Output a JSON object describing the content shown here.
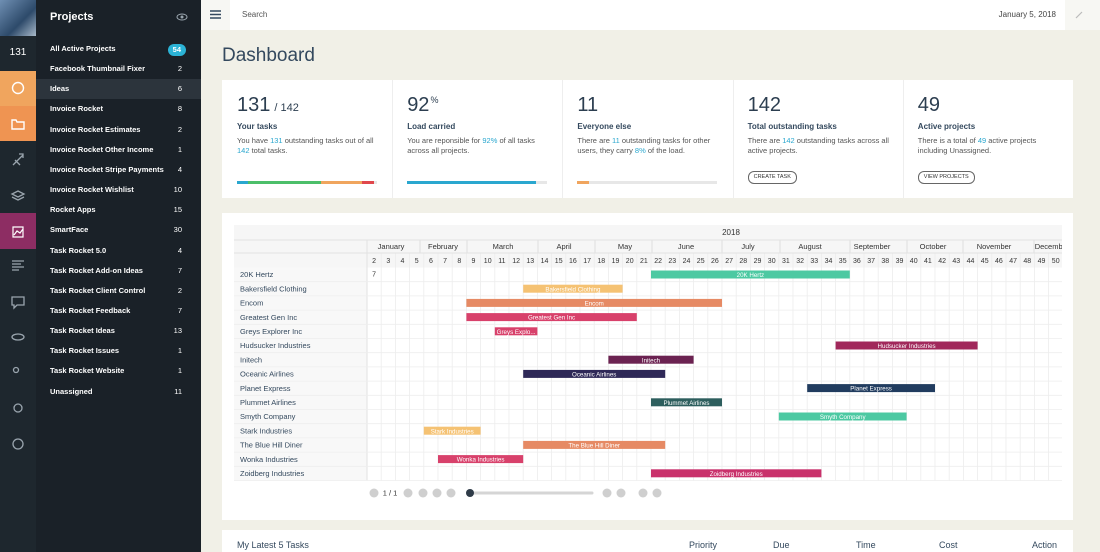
{
  "rail": {
    "count": "131"
  },
  "sidebar": {
    "title": "Projects",
    "projects": [
      {
        "name": "All Active Projects",
        "count": 54
      },
      {
        "name": "Facebook Thumbnail Fixer",
        "count": 2
      },
      {
        "name": "Ideas",
        "count": 6
      },
      {
        "name": "Invoice Rocket",
        "count": 8
      },
      {
        "name": "Invoice Rocket Estimates",
        "count": 2
      },
      {
        "name": "Invoice Rocket Other Income",
        "count": 1
      },
      {
        "name": "Invoice Rocket Stripe Payments",
        "count": 4
      },
      {
        "name": "Invoice Rocket Wishlist",
        "count": 10
      },
      {
        "name": "Rocket Apps",
        "count": 15
      },
      {
        "name": "SmartFace",
        "count": 30
      },
      {
        "name": "Task Rocket 5.0",
        "count": 4
      },
      {
        "name": "Task Rocket Add-on Ideas",
        "count": 7
      },
      {
        "name": "Task Rocket Client Control",
        "count": 2
      },
      {
        "name": "Task Rocket Feedback",
        "count": 7
      },
      {
        "name": "Task Rocket Ideas",
        "count": 13
      },
      {
        "name": "Task Rocket Issues",
        "count": 1
      },
      {
        "name": "Task Rocket Website",
        "count": 1
      },
      {
        "name": "Unassigned",
        "count": 11
      }
    ]
  },
  "topbar": {
    "search_placeholder": "Search",
    "date": "January 5, 2018"
  },
  "page_title": "Dashboard",
  "stats": [
    {
      "value": 131,
      "suffix": "/ 142",
      "label": "Your tasks",
      "description": [
        "You have ",
        "131",
        " outstanding tasks out of all ",
        "142",
        " total tasks."
      ]
    },
    {
      "value": 92,
      "suffix": "%",
      "label": "Load carried",
      "description": [
        "You are reponsible for ",
        "92%",
        " of all tasks across all projects."
      ],
      "bar": 92
    },
    {
      "value": 11,
      "label": "Everyone else",
      "description": [
        "There are ",
        "11",
        " outstanding tasks for other users, they carry ",
        "8%",
        " of the load."
      ],
      "bar": 8
    },
    {
      "value": 142,
      "label": "Total outstanding tasks",
      "description": [
        "There are ",
        "142",
        " outstanding tasks across all active projects."
      ],
      "button": "CREATE TASK"
    },
    {
      "value": 49,
      "label": "Active projects",
      "description": [
        "There is a total of ",
        "49",
        " active projects including Unassigned."
      ],
      "button": "VIEW PROJECTS"
    }
  ],
  "gantt": {
    "year": "2018",
    "months": [
      "January",
      "February",
      "March",
      "April",
      "May",
      "June",
      "July",
      "August",
      "September",
      "October",
      "November",
      "December"
    ],
    "weeks": [
      2,
      3,
      4,
      5,
      6,
      7,
      8,
      9,
      10,
      11,
      12,
      13,
      14,
      15,
      16,
      17,
      18,
      19,
      20,
      21,
      22,
      23,
      24,
      25,
      26,
      27,
      28,
      29,
      30,
      31,
      32,
      33,
      34,
      35,
      36,
      37,
      38,
      39,
      40,
      41,
      42,
      43,
      44,
      45,
      46,
      47,
      48,
      49,
      50
    ],
    "marker": 7,
    "rows": [
      {
        "name": "20K Hertz",
        "bar_label": "20K Hertz",
        "color": "#4cc9a2",
        "start_week": 22,
        "end_week": 35
      },
      {
        "name": "Bakersfield Clothing",
        "bar_label": "Bakersfield Clothing",
        "color": "#f5c273",
        "start_week": 13,
        "end_week": 19
      },
      {
        "name": "Encom",
        "bar_label": "Encom",
        "color": "#e68a64",
        "start_week": 9,
        "end_week": 26
      },
      {
        "name": "Greatest Gen Inc",
        "bar_label": "Greatest Gen Inc",
        "color": "#d8416b",
        "start_week": 9,
        "end_week": 20
      },
      {
        "name": "Greys Explorer Inc",
        "bar_label": "Greys Explo...",
        "color": "#d8416b",
        "start_week": 11,
        "end_week": 13
      },
      {
        "name": "Hudsucker Industries",
        "bar_label": "Hudsucker Industries",
        "color": "#a1285b",
        "start_week": 35,
        "end_week": 44
      },
      {
        "name": "Initech",
        "bar_label": "Initech",
        "color": "#6b2251",
        "start_week": 19,
        "end_week": 24
      },
      {
        "name": "Oceanic Airlines",
        "bar_label": "Oceanic Airlines",
        "color": "#2f2958",
        "start_week": 13,
        "end_week": 22
      },
      {
        "name": "Planet Express",
        "bar_label": "Planet Express",
        "color": "#213c5f",
        "start_week": 33,
        "end_week": 41
      },
      {
        "name": "Plummet Airlines",
        "bar_label": "Plummet Airlines",
        "color": "#2d5e5d",
        "start_week": 22,
        "end_week": 26
      },
      {
        "name": "Smyth Company",
        "bar_label": "Smyth Company",
        "color": "#4cc9a2",
        "start_week": 31,
        "end_week": 39
      },
      {
        "name": "Stark Industries",
        "bar_label": "Stark Industries",
        "color": "#f5c273",
        "start_week": 6,
        "end_week": 9
      },
      {
        "name": "The Blue Hill Diner",
        "bar_label": "The Blue Hill Diner",
        "color": "#e68a64",
        "start_week": 13,
        "end_week": 22
      },
      {
        "name": "Wonka Industries",
        "bar_label": "Wonka Industries",
        "color": "#d8416b",
        "start_week": 7,
        "end_week": 12
      },
      {
        "name": "Zoidberg Industries",
        "bar_label": "Zoidberg Industries",
        "color": "#c9316b",
        "start_week": 22,
        "end_week": 33
      }
    ],
    "pagination": "1 / 1"
  },
  "tasks_table": {
    "title": "My Latest 5 Tasks",
    "columns": [
      "Priority",
      "Due",
      "Time",
      "Cost",
      "Action"
    ]
  }
}
